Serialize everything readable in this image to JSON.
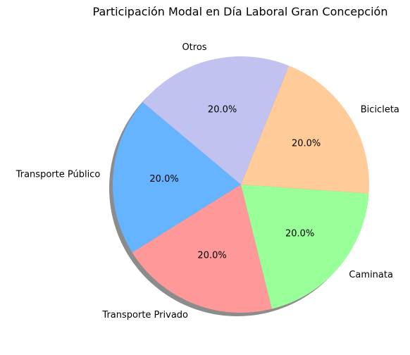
{
  "chart_data": {
    "type": "pie",
    "title": "Participación Modal en Día Laboral Gran Concepción",
    "categories": [
      "Transporte Público",
      "Transporte Privado",
      "Caminata",
      "Bicicleta",
      "Otros"
    ],
    "values": [
      20.0,
      20.0,
      20.0,
      20.0,
      20.0
    ],
    "percent_labels": [
      "20.0%",
      "20.0%",
      "20.0%",
      "20.0%",
      "20.0%"
    ],
    "colors": [
      "#66b3ff",
      "#ff9999",
      "#99ff99",
      "#ffcc99",
      "#c2c2f0"
    ],
    "shadow": true,
    "legend": "none"
  }
}
